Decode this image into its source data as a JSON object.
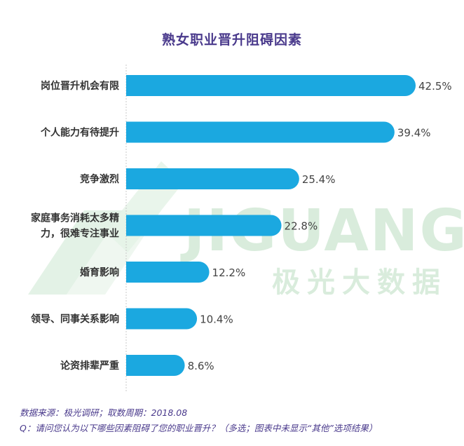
{
  "header": {
    "title": "熟女职业晋升阻碍因素"
  },
  "watermark": {
    "brand_en": "JIGUANG",
    "brand_cn": "极光大数据"
  },
  "footer": {
    "source": "数据来源：极光调研；取数周期：2018.08",
    "question": "Q：请问您认为以下哪些因素阻碍了您的职业晋升？（多选；图表中未显示“其他”选项结果）"
  },
  "colors": {
    "bar": "#1ba8e0",
    "title": "#4a3a8c",
    "label": "#333333",
    "watermark": "#d5ebd9"
  },
  "chart_data": {
    "type": "bar",
    "orientation": "horizontal",
    "title": "熟女职业晋升阻碍因素",
    "categories": [
      [
        "岗位晋升机会有限"
      ],
      [
        "个人能力有待提升"
      ],
      [
        "竞争激烈"
      ],
      [
        "家庭事务消耗太多精",
        "力，很难专注事业"
      ],
      [
        "婚育影响"
      ],
      [
        "领导、同事关系影响"
      ],
      [
        "论资排辈严重"
      ]
    ],
    "values": [
      42.5,
      39.4,
      25.4,
      22.8,
      12.2,
      10.4,
      8.6
    ],
    "value_labels": [
      "42.5%",
      "39.4%",
      "25.4%",
      "22.8%",
      "12.2%",
      "10.4%",
      "8.6%"
    ],
    "xlim": [
      0,
      42.5
    ],
    "grid": false
  }
}
